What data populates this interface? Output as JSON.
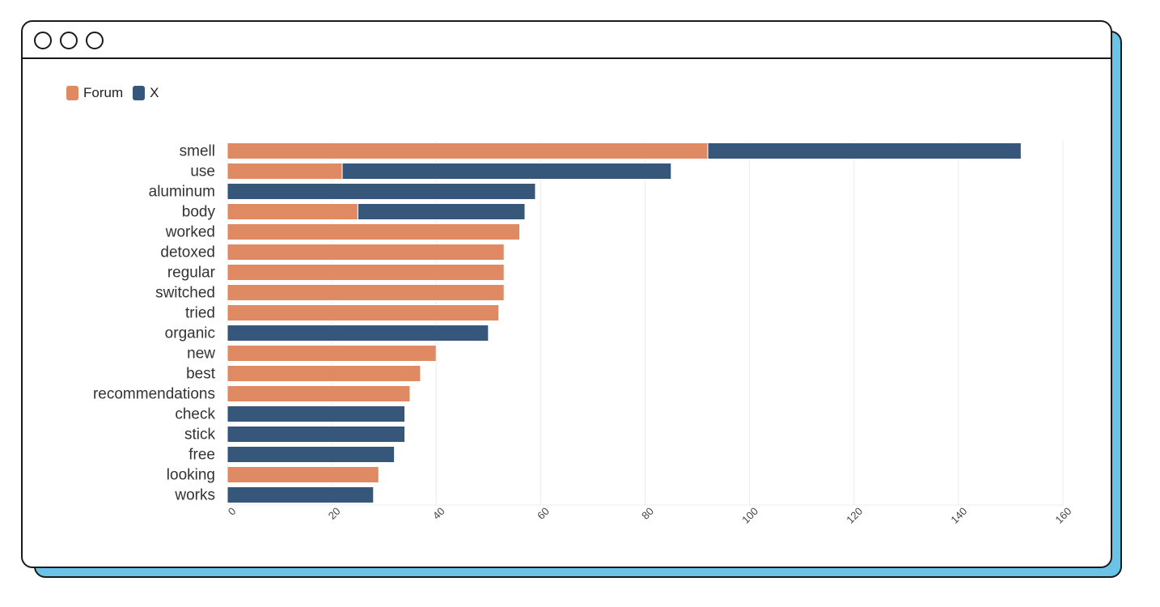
{
  "window": {
    "buttons": [
      "close",
      "minimize",
      "maximize"
    ]
  },
  "legend": {
    "items": [
      {
        "label": "Forum",
        "color": "#e08a63"
      },
      {
        "label": "X",
        "color": "#36577a"
      }
    ]
  },
  "chart_data": {
    "type": "bar",
    "orientation": "horizontal",
    "stacked": true,
    "categories": [
      "smell",
      "use",
      "aluminum",
      "body",
      "worked",
      "detoxed",
      "regular",
      "switched",
      "tried",
      "organic",
      "new",
      "best",
      "recommendations",
      "check",
      "stick",
      "free",
      "looking",
      "works"
    ],
    "series": [
      {
        "name": "Forum",
        "color": "#e08a63",
        "values": [
          92,
          22,
          0,
          25,
          56,
          53,
          53,
          53,
          52,
          0,
          40,
          37,
          35,
          0,
          0,
          0,
          29,
          0
        ]
      },
      {
        "name": "X",
        "color": "#36577a",
        "values": [
          60,
          63,
          59,
          32,
          0,
          0,
          0,
          0,
          0,
          50,
          0,
          0,
          0,
          34,
          34,
          32,
          0,
          28
        ]
      }
    ],
    "xlim": [
      0,
      160
    ],
    "xticks": [
      0,
      20,
      40,
      60,
      80,
      100,
      120,
      140,
      160
    ],
    "grid": "vertical",
    "legend_position": "top-left"
  }
}
